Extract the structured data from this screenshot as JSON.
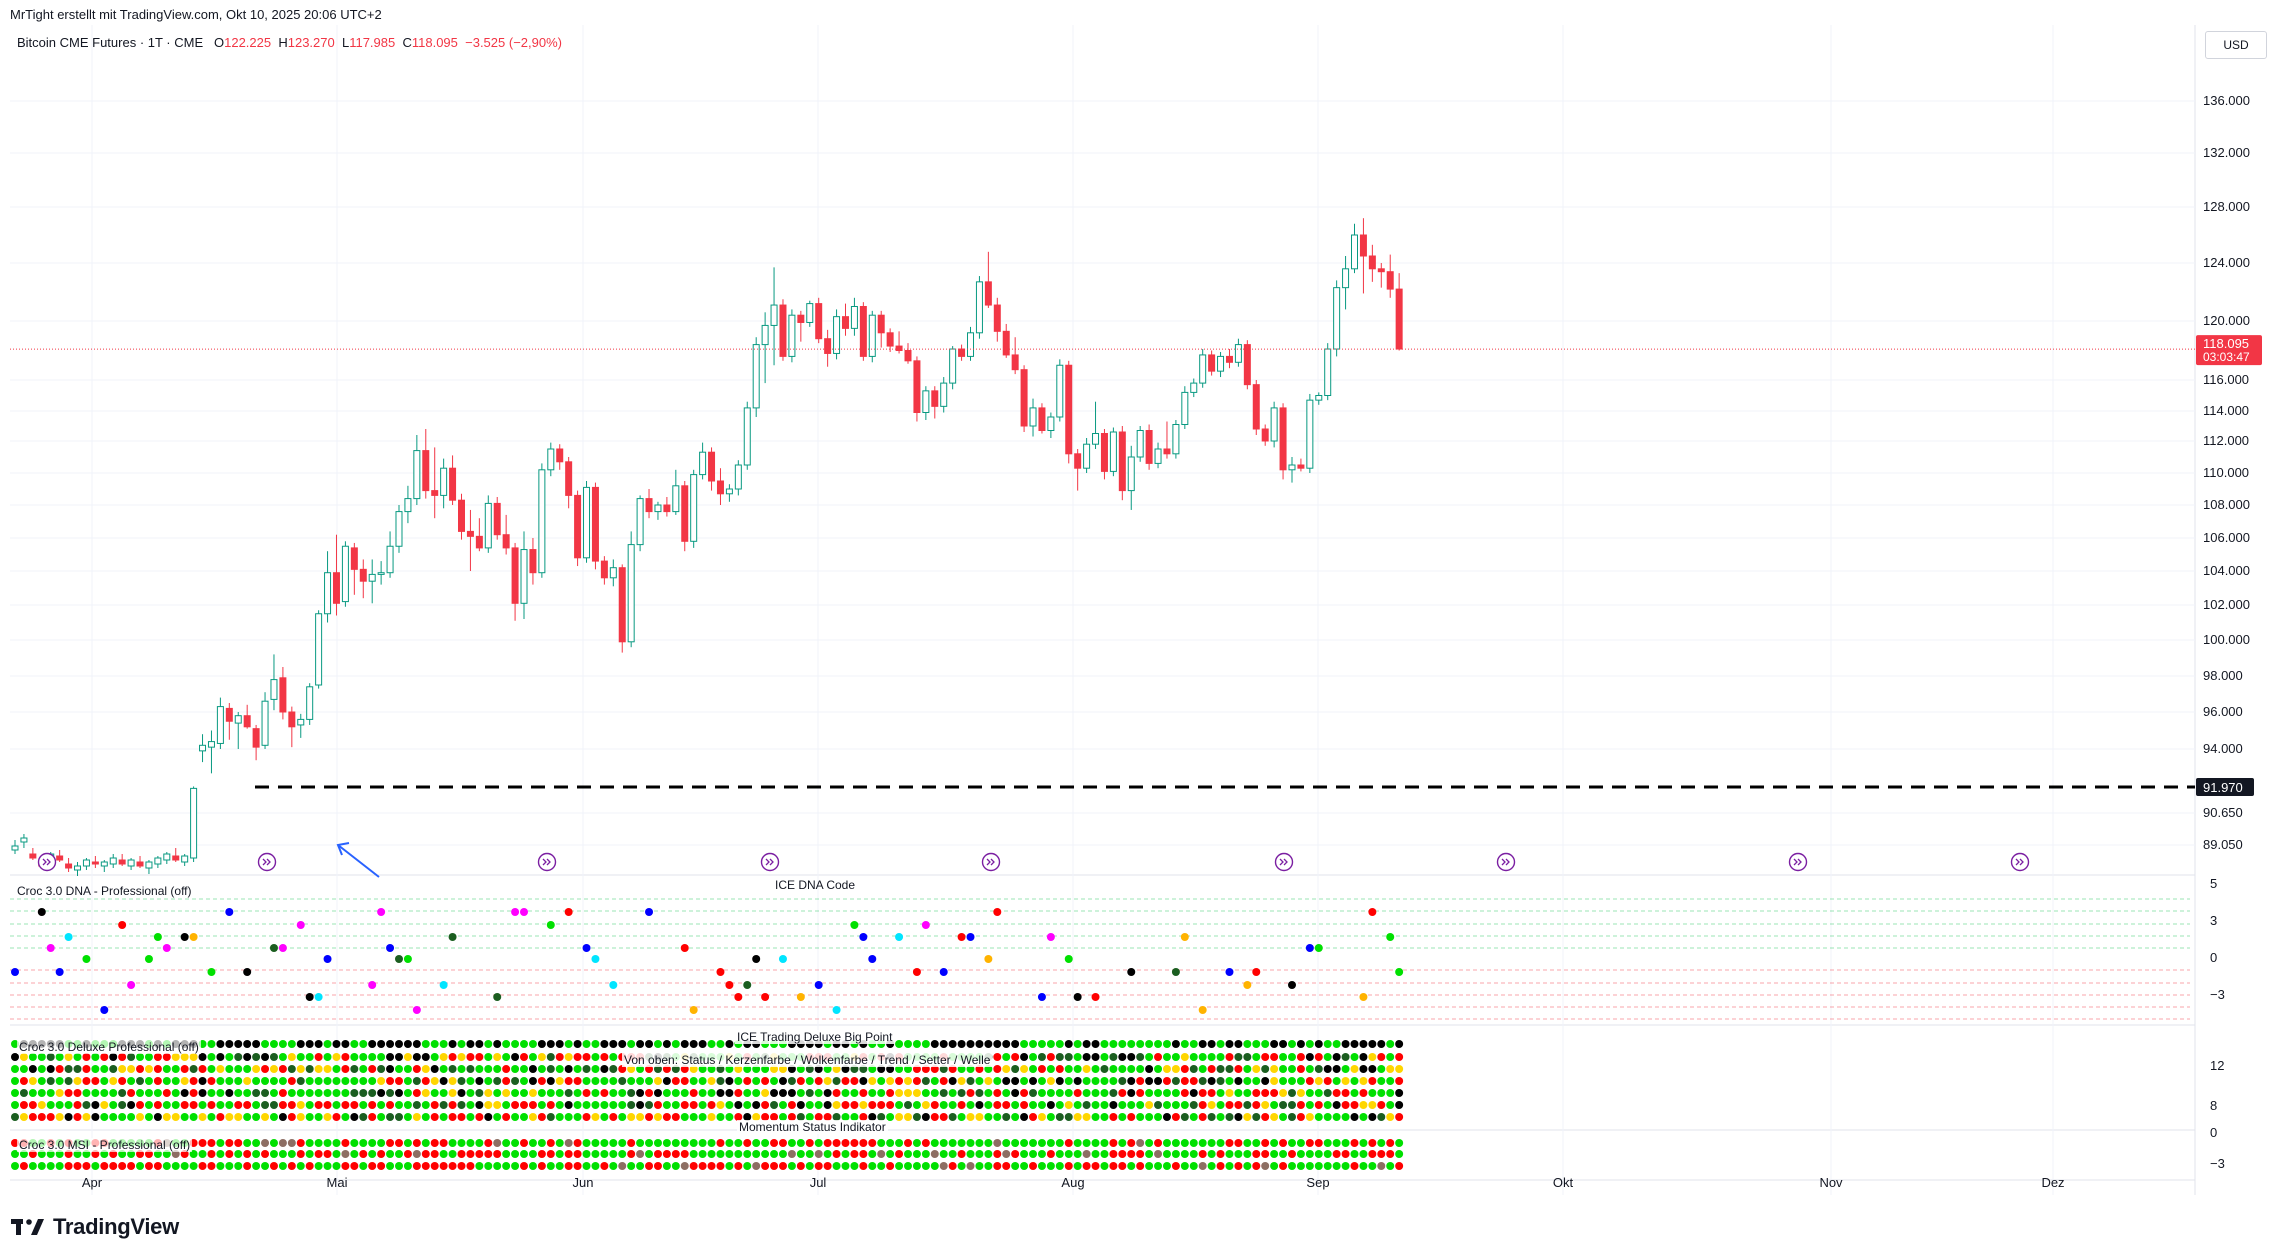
{
  "header": {
    "credit": "MrTight erstellt mit TradingView.com, Okt 10, 2025 20:06 UTC+2",
    "symbol": "Bitcoin CME Futures · 1T · CME",
    "open_label": "O",
    "open": "122.225",
    "high_label": "H",
    "high": "123.270",
    "low_label": "L",
    "low": "117.985",
    "close_label": "C",
    "close": "118.095",
    "change": "−3.525 (−2,90%)",
    "currency": "USD"
  },
  "panes": {
    "dna_title": "Croc 3.0 DNA - Professional (off)",
    "dna_center_title": "ICE DNA Code",
    "dna_axis": [
      "5",
      "3",
      "0",
      "−3"
    ],
    "big_point_title": "ICE Trading Deluxe Big Point",
    "big_point_sub": "Von oben: Status / Kerzenfarbe / Wolkenfarbe / Trend / Setter / Welle",
    "big_point_left": "Croc 3.0 Deluxe Professional (off)",
    "big_axis": [
      "12",
      "8",
      "0"
    ],
    "momentum_title": "Momentum Status Indikator",
    "msi_title": "Croc 3.0 MSI - Professional (off)",
    "msi_axis": [
      "−3"
    ]
  },
  "brand": {
    "name": "TradingView"
  },
  "chart_data": {
    "type": "candlestick",
    "y_ticks": [
      "136.000",
      "132.000",
      "128.000",
      "124.000",
      "120.000",
      "116.000",
      "114.000",
      "112.000",
      "110.000",
      "108.000",
      "106.000",
      "104.000",
      "102.000",
      "100.000",
      "98.000",
      "96.000",
      "94.000",
      "90.650",
      "89.050"
    ],
    "x_ticks": [
      "Apr",
      "Mai",
      "Jun",
      "Jul",
      "Aug",
      "Sep",
      "Okt",
      "Nov",
      "Dez"
    ],
    "last_price": {
      "value": "118.095",
      "countdown": "03:03:47"
    },
    "horizontal_level": {
      "value": "91.970"
    },
    "candles": [
      [
        88.8,
        89.3,
        88.6,
        89.0
      ],
      [
        89.2,
        89.6,
        88.9,
        89.4
      ],
      [
        88.6,
        88.9,
        88.3,
        88.4
      ],
      [
        88.2,
        88.5,
        87.9,
        88.0
      ],
      [
        88.3,
        88.7,
        88.1,
        88.6
      ],
      [
        88.5,
        88.8,
        88.2,
        88.3
      ],
      [
        88.1,
        88.4,
        87.7,
        87.9
      ],
      [
        87.8,
        88.2,
        87.5,
        88.0
      ],
      [
        88.0,
        88.4,
        87.8,
        88.3
      ],
      [
        88.2,
        88.5,
        87.9,
        88.1
      ],
      [
        88.0,
        88.3,
        87.7,
        88.2
      ],
      [
        88.1,
        88.6,
        87.9,
        88.4
      ],
      [
        88.3,
        88.6,
        88.0,
        88.1
      ],
      [
        88.0,
        88.4,
        87.8,
        88.3
      ],
      [
        88.2,
        88.5,
        87.9,
        88.0
      ],
      [
        87.9,
        88.3,
        87.6,
        88.2
      ],
      [
        88.1,
        88.5,
        87.9,
        88.4
      ],
      [
        88.3,
        88.7,
        88.1,
        88.6
      ],
      [
        88.5,
        88.9,
        88.2,
        88.3
      ],
      [
        88.2,
        88.6,
        88.0,
        88.5
      ],
      [
        88.4,
        92.0,
        88.2,
        91.9
      ],
      [
        93.9,
        94.8,
        93.3,
        94.2
      ],
      [
        94.1,
        95.0,
        92.7,
        94.4
      ],
      [
        94.3,
        96.8,
        94.0,
        96.3
      ],
      [
        96.2,
        96.5,
        94.5,
        95.5
      ],
      [
        95.4,
        96.0,
        94.0,
        95.8
      ],
      [
        95.8,
        96.4,
        95.1,
        95.2
      ],
      [
        95.1,
        95.3,
        93.4,
        94.1
      ],
      [
        94.2,
        97.1,
        94.0,
        96.6
      ],
      [
        96.7,
        99.2,
        96.1,
        97.8
      ],
      [
        97.9,
        98.5,
        95.6,
        96.0
      ],
      [
        96.0,
        96.3,
        94.1,
        95.2
      ],
      [
        95.3,
        95.9,
        94.6,
        95.6
      ],
      [
        95.6,
        97.6,
        95.3,
        97.4
      ],
      [
        97.5,
        101.7,
        97.3,
        101.5
      ],
      [
        101.5,
        105.2,
        101.0,
        103.9
      ],
      [
        103.9,
        106.2,
        101.4,
        102.1
      ],
      [
        102.2,
        105.8,
        101.9,
        105.5
      ],
      [
        105.4,
        105.7,
        102.6,
        104.1
      ],
      [
        104.1,
        104.7,
        102.4,
        103.4
      ],
      [
        103.4,
        104.7,
        102.1,
        103.8
      ],
      [
        103.8,
        104.6,
        103.2,
        103.9
      ],
      [
        103.9,
        106.4,
        103.6,
        105.5
      ],
      [
        105.5,
        108.0,
        105.1,
        107.6
      ],
      [
        107.6,
        109.2,
        106.9,
        108.4
      ],
      [
        108.4,
        112.4,
        108.0,
        111.4
      ],
      [
        111.4,
        112.8,
        108.4,
        108.9
      ],
      [
        108.9,
        111.6,
        107.2,
        108.6
      ],
      [
        108.6,
        110.9,
        107.8,
        110.3
      ],
      [
        110.3,
        111.1,
        108.0,
        108.3
      ],
      [
        108.3,
        108.7,
        105.9,
        106.4
      ],
      [
        106.4,
        107.7,
        104.0,
        106.1
      ],
      [
        106.1,
        107.2,
        105.2,
        105.4
      ],
      [
        105.4,
        108.6,
        105.1,
        108.1
      ],
      [
        108.1,
        108.5,
        105.9,
        106.2
      ],
      [
        106.2,
        107.4,
        105.0,
        105.4
      ],
      [
        105.4,
        105.7,
        101.1,
        102.1
      ],
      [
        102.1,
        106.4,
        101.2,
        105.3
      ],
      [
        105.3,
        106.0,
        103.2,
        103.9
      ],
      [
        103.9,
        110.6,
        103.6,
        110.2
      ],
      [
        110.2,
        111.9,
        109.8,
        111.5
      ],
      [
        111.5,
        111.8,
        110.2,
        110.7
      ],
      [
        110.7,
        111.0,
        107.8,
        108.6
      ],
      [
        108.6,
        108.9,
        104.3,
        104.8
      ],
      [
        104.8,
        109.5,
        104.5,
        109.1
      ],
      [
        109.1,
        109.4,
        104.1,
        104.6
      ],
      [
        104.6,
        104.9,
        103.2,
        103.6
      ],
      [
        103.6,
        104.7,
        103.1,
        104.2
      ],
      [
        104.2,
        104.4,
        99.3,
        99.9
      ],
      [
        99.9,
        106.4,
        99.6,
        105.6
      ],
      [
        105.6,
        108.6,
        105.2,
        108.4
      ],
      [
        108.4,
        109.0,
        107.2,
        107.6
      ],
      [
        107.6,
        108.2,
        107.1,
        108.0
      ],
      [
        108.0,
        108.5,
        107.3,
        107.6
      ],
      [
        107.6,
        110.2,
        107.4,
        109.2
      ],
      [
        109.2,
        109.5,
        105.2,
        105.8
      ],
      [
        105.8,
        110.2,
        105.4,
        109.9
      ],
      [
        109.9,
        111.9,
        109.6,
        111.3
      ],
      [
        111.3,
        111.6,
        108.9,
        109.5
      ],
      [
        109.5,
        110.3,
        108.0,
        108.7
      ],
      [
        108.7,
        109.3,
        108.2,
        109.0
      ],
      [
        109.0,
        110.8,
        108.6,
        110.5
      ],
      [
        110.5,
        114.6,
        110.2,
        114.2
      ],
      [
        114.2,
        118.9,
        113.6,
        118.4
      ],
      [
        118.4,
        120.6,
        115.8,
        119.7
      ],
      [
        119.7,
        123.7,
        117.0,
        121.1
      ],
      [
        121.1,
        121.5,
        117.3,
        117.6
      ],
      [
        117.6,
        120.8,
        117.2,
        120.4
      ],
      [
        120.4,
        120.7,
        118.6,
        119.9
      ],
      [
        119.9,
        121.4,
        119.6,
        121.2
      ],
      [
        121.2,
        121.6,
        118.5,
        118.8
      ],
      [
        118.8,
        119.4,
        116.9,
        117.8
      ],
      [
        117.8,
        120.8,
        117.4,
        120.3
      ],
      [
        120.3,
        121.2,
        119.0,
        119.5
      ],
      [
        119.5,
        121.6,
        119.0,
        121.0
      ],
      [
        121.0,
        121.3,
        117.3,
        117.6
      ],
      [
        117.6,
        120.7,
        117.2,
        120.4
      ],
      [
        120.4,
        120.7,
        118.2,
        119.2
      ],
      [
        119.2,
        119.5,
        117.9,
        118.3
      ],
      [
        118.3,
        119.3,
        117.8,
        118.0
      ],
      [
        118.0,
        118.5,
        117.1,
        117.3
      ],
      [
        117.3,
        117.6,
        113.3,
        113.9
      ],
      [
        113.9,
        115.6,
        113.4,
        115.3
      ],
      [
        115.3,
        115.6,
        113.5,
        114.3
      ],
      [
        114.3,
        116.2,
        113.9,
        115.8
      ],
      [
        115.8,
        118.3,
        115.4,
        118.1
      ],
      [
        118.1,
        118.4,
        117.3,
        117.6
      ],
      [
        117.6,
        119.6,
        117.3,
        119.2
      ],
      [
        119.2,
        123.1,
        118.8,
        122.7
      ],
      [
        122.7,
        124.8,
        120.9,
        121.1
      ],
      [
        121.1,
        121.6,
        118.6,
        119.3
      ],
      [
        119.3,
        119.8,
        117.5,
        117.7
      ],
      [
        117.7,
        118.9,
        116.4,
        116.7
      ],
      [
        116.7,
        117.0,
        112.6,
        113.0
      ],
      [
        113.0,
        114.8,
        112.3,
        114.2
      ],
      [
        114.2,
        114.5,
        112.5,
        112.7
      ],
      [
        112.7,
        113.9,
        112.2,
        113.6
      ],
      [
        113.6,
        117.4,
        113.3,
        117.0
      ],
      [
        117.0,
        117.3,
        110.6,
        111.2
      ],
      [
        111.2,
        111.5,
        108.9,
        110.3
      ],
      [
        110.3,
        112.2,
        110.0,
        111.8
      ],
      [
        111.8,
        114.6,
        111.5,
        112.5
      ],
      [
        112.5,
        112.8,
        109.6,
        110.1
      ],
      [
        110.1,
        112.9,
        109.8,
        112.6
      ],
      [
        112.6,
        113.0,
        108.3,
        108.9
      ],
      [
        108.9,
        111.7,
        107.7,
        111.0
      ],
      [
        111.0,
        113.0,
        110.7,
        112.7
      ],
      [
        112.7,
        113.1,
        110.2,
        110.6
      ],
      [
        110.6,
        111.9,
        110.3,
        111.5
      ],
      [
        111.5,
        113.3,
        110.9,
        111.2
      ],
      [
        111.2,
        113.4,
        110.9,
        113.1
      ],
      [
        113.1,
        115.6,
        112.8,
        115.2
      ],
      [
        115.2,
        116.1,
        114.9,
        115.8
      ],
      [
        115.8,
        118.1,
        115.5,
        117.7
      ],
      [
        117.7,
        118.0,
        116.3,
        116.6
      ],
      [
        116.6,
        117.9,
        116.2,
        117.6
      ],
      [
        117.6,
        118.1,
        116.8,
        117.2
      ],
      [
        117.2,
        118.8,
        116.9,
        118.4
      ],
      [
        118.4,
        118.7,
        115.4,
        115.7
      ],
      [
        115.7,
        116.0,
        112.4,
        112.8
      ],
      [
        112.8,
        113.1,
        111.7,
        112.0
      ],
      [
        112.0,
        114.6,
        111.6,
        114.2
      ],
      [
        114.2,
        114.5,
        109.6,
        110.2
      ],
      [
        110.2,
        111.0,
        109.4,
        110.5
      ],
      [
        110.5,
        110.9,
        110.1,
        110.3
      ],
      [
        110.3,
        115.1,
        110.0,
        114.7
      ],
      [
        114.7,
        115.2,
        114.4,
        115.0
      ],
      [
        115.0,
        118.5,
        114.7,
        118.1
      ],
      [
        118.1,
        122.8,
        117.6,
        122.3
      ],
      [
        122.3,
        124.5,
        120.8,
        123.6
      ],
      [
        123.6,
        126.8,
        123.3,
        126.0
      ],
      [
        126.0,
        127.2,
        121.9,
        124.5
      ],
      [
        124.5,
        125.3,
        122.7,
        123.6
      ],
      [
        123.6,
        124.0,
        122.3,
        123.4
      ],
      [
        123.4,
        124.6,
        121.6,
        122.2
      ],
      [
        122.2,
        123.3,
        118.0,
        118.1
      ]
    ]
  }
}
